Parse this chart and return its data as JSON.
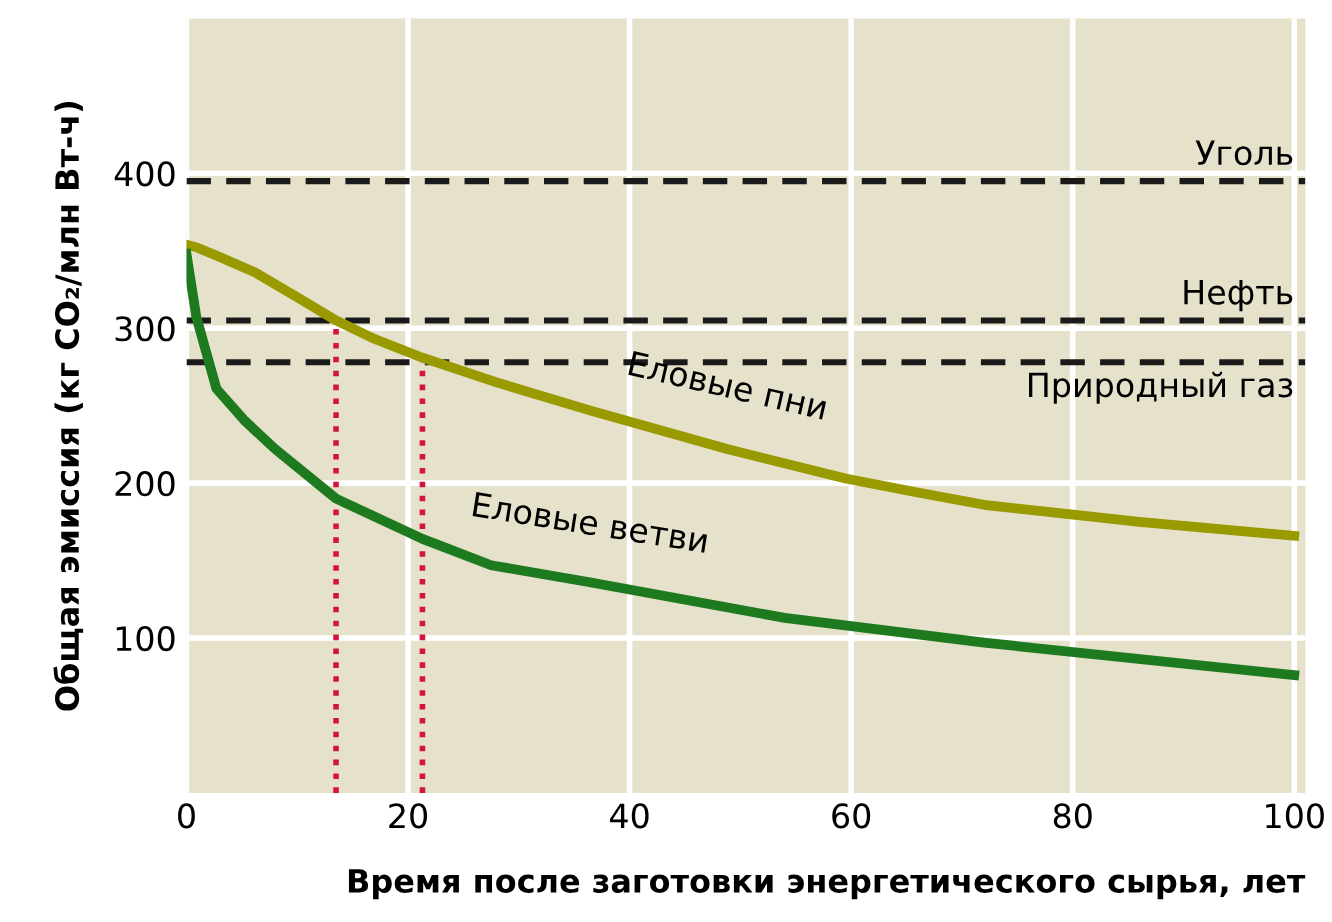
{
  "chart_data": {
    "type": "line",
    "xlabel": "Время после заготовки энергетического сырья, лет",
    "ylabel": "Общая эмиссия (кг CO₂/млн Вт-ч)",
    "xlim": [
      0,
      101
    ],
    "ylim": [
      0,
      500
    ],
    "xticks": [
      0,
      20,
      40,
      60,
      80,
      100
    ],
    "yticks": [
      100,
      200,
      300,
      400
    ],
    "grid": true,
    "legend": false,
    "marker": "none",
    "line_style": "solid",
    "series": [
      {
        "name": "Еловые пни",
        "color": "#999a00",
        "x": [
          0,
          1,
          3,
          6.2,
          10,
          13.5,
          17,
          21.3,
          28,
          36.4,
          48.8,
          59.5,
          66,
          72,
          86,
          100
        ],
        "values": [
          354,
          352,
          346,
          336,
          320,
          305,
          293,
          281,
          265,
          247,
          222,
          203,
          194,
          186,
          175,
          166
        ]
      },
      {
        "name": "Еловые ветви",
        "color": "#1e7a1e",
        "x": [
          0,
          0.9,
          2.7,
          5.3,
          8,
          13.5,
          21.3,
          27.5,
          36.4,
          54,
          72,
          100
        ],
        "values": [
          348,
          307,
          261,
          240,
          222,
          190,
          164,
          147,
          136,
          113,
          97,
          76
        ]
      }
    ],
    "ref_lines": [
      {
        "axis": "y",
        "value": 395,
        "label": "Уголь",
        "color": "#1a1a1a",
        "line_style": "dashed"
      },
      {
        "axis": "y",
        "value": 305,
        "label": "Нефть",
        "color": "#1a1a1a",
        "line_style": "dashed"
      },
      {
        "axis": "y",
        "value": 278,
        "label": "Природный газ",
        "color": "#1a1a1a",
        "line_style": "dashed"
      },
      {
        "axis": "x",
        "value": 13.5,
        "color": "#d4143c",
        "line_style": "dotted"
      },
      {
        "axis": "x",
        "value": 21.3,
        "color": "#d4143c",
        "line_style": "dotted"
      }
    ]
  }
}
